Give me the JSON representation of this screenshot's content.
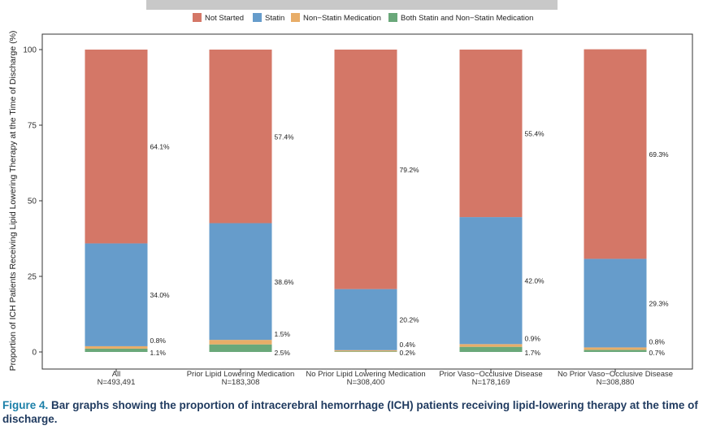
{
  "chart_data": {
    "type": "bar",
    "stacked": true,
    "ylabel": "Proportion of ICH Patients Receiving Lipid Lowering Therapy at the Time of Discharge (%)",
    "ylim": [
      0,
      100
    ],
    "yticks": [
      "0",
      "25",
      "50",
      "75",
      "100"
    ],
    "legend_position": "top",
    "categories": [
      {
        "name": "All",
        "n": "N=493,491"
      },
      {
        "name": "Prior Lipid Lowering Medication",
        "n": "N=183,308"
      },
      {
        "name": "No Prior Lipid Lowering Medication",
        "n": "N=308,400"
      },
      {
        "name": "Prior Vaso−Occlusive Disease",
        "n": "N=178,169"
      },
      {
        "name": "No Prior Vaso−Occlusive Disease",
        "n": "N=308,880"
      }
    ],
    "series": [
      {
        "name": "Both Statin and Non−Statin Medication",
        "color": "#6aa87a",
        "values": [
          1.1,
          2.5,
          0.2,
          1.7,
          0.7
        ],
        "labels": [
          "1.1%",
          "2.5%",
          "0.2%",
          "1.7%",
          "0.7%"
        ]
      },
      {
        "name": "Non−Statin Medication",
        "color": "#e8ad68",
        "values": [
          0.8,
          1.5,
          0.4,
          0.9,
          0.8
        ],
        "labels": [
          "0.8%",
          "1.5%",
          "0.4%",
          "0.9%",
          "0.8%"
        ]
      },
      {
        "name": "Statin",
        "color": "#669ccb",
        "values": [
          34.0,
          38.6,
          20.2,
          42.0,
          29.3
        ],
        "labels": [
          "34.0%",
          "38.6%",
          "20.2%",
          "42.0%",
          "29.3%"
        ]
      },
      {
        "name": "Not Started",
        "color": "#d47767",
        "values": [
          64.1,
          57.4,
          79.2,
          55.4,
          69.3
        ],
        "labels": [
          "64.1%",
          "57.4%",
          "79.2%",
          "55.4%",
          "69.3%"
        ]
      }
    ],
    "legend": [
      {
        "name": "Not Started",
        "color": "#d47767"
      },
      {
        "name": "Statin",
        "color": "#669ccb"
      },
      {
        "name": "Non−Statin Medication",
        "color": "#e8ad68"
      },
      {
        "name": "Both Statin and Non−Statin Medication",
        "color": "#6aa87a"
      }
    ]
  },
  "caption": {
    "label": "Figure 4.",
    "text": "Bar graphs showing the proportion of intracerebral hemorrhage (ICH) patients receiving lipid-lowering therapy at the time of discharge."
  }
}
